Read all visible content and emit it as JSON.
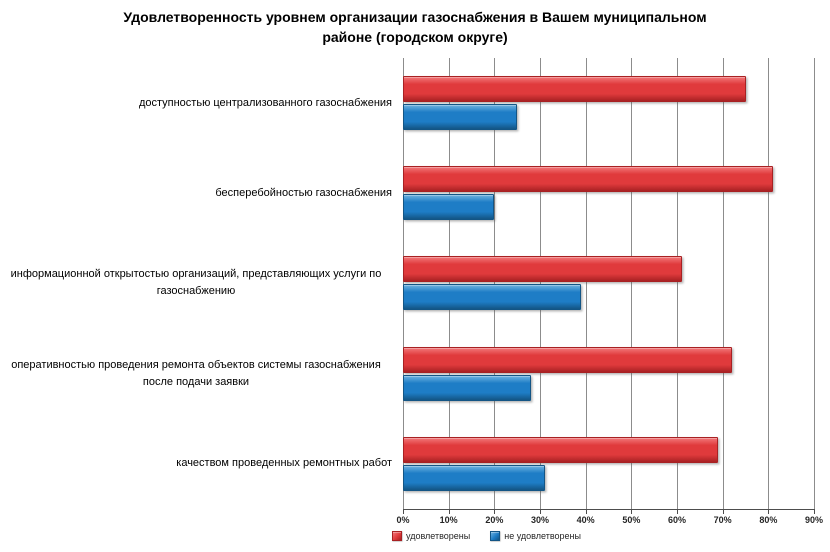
{
  "chart": {
    "title": "Удовлетворенность уровнем организации газоснабжения в Вашем муниципальном районе (городском округе)",
    "title_lines": [
      "Удовлетворенность уровнем организации газоснабжения в Вашем муниципальном",
      "районе (городском округе)"
    ]
  },
  "chart_data": {
    "type": "bar",
    "orientation": "horizontal",
    "title": "Удовлетворенность уровнем организации газоснабжения в Вашем муниципальном районе (городском округе)",
    "categories": [
      "доступностью централизованного газоснабжения",
      "бесперебойностью газоснабжения",
      "информационной открытостью организаций, представляющих услуги по газоснабжению",
      "оперативностью проведения ремонта объектов системы газоснабжения после подачи заявки",
      "качеством проведенных ремонтных работ"
    ],
    "series": [
      {
        "name": "удовлетворены",
        "color": "#E03A3C",
        "color_light": "#F2797B",
        "color_dark": "#A82123",
        "values": [
          75,
          81,
          61,
          72,
          69
        ]
      },
      {
        "name": "не удовлетворены",
        "color": "#1E7DC6",
        "color_light": "#6FB3E0",
        "color_dark": "#135585",
        "values": [
          25,
          20,
          39,
          28,
          31
        ]
      }
    ],
    "x_axis": {
      "unit": "%",
      "min": 0,
      "max": 90,
      "tick_step": 10,
      "ticks": [
        "0%",
        "10%",
        "20%",
        "30%",
        "40%",
        "50%",
        "60%",
        "70%",
        "80%",
        "90%"
      ]
    },
    "grid": true,
    "legend_position": "bottom-left",
    "colors": {
      "gridline": "#8C8C8C",
      "axis_line": "#4D4D4D",
      "title_text": "#000000",
      "category_text": "#000000",
      "tick_text": "#262626",
      "legend_text": "#262626",
      "background": "#FFFFFF"
    }
  }
}
